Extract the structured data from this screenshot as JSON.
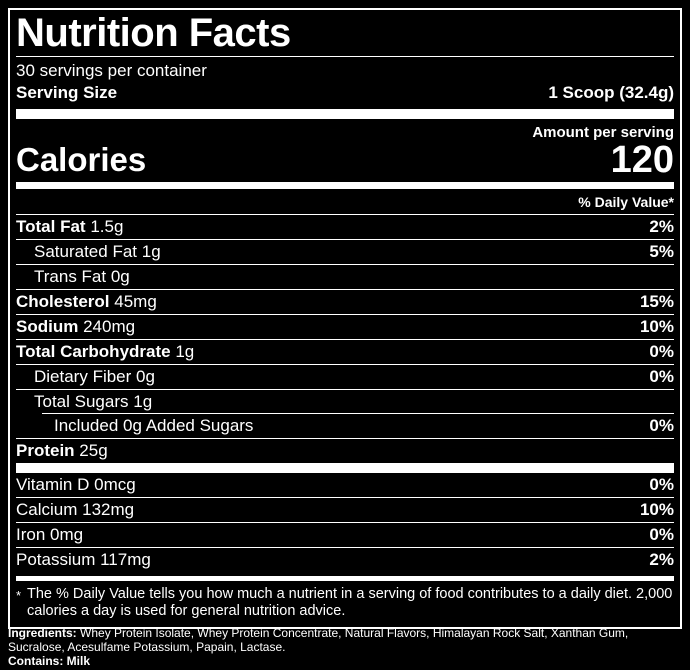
{
  "colors": {
    "background": "#000000",
    "foreground": "#ffffff"
  },
  "label": {
    "title": "Nutrition Facts",
    "servings_per_container": "30 servings per container",
    "serving_size_label": "Serving Size",
    "serving_size_value": "1 Scoop (32.4g)",
    "amount_per_serving": "Amount per serving",
    "calories_label": "Calories",
    "calories_value": "120",
    "daily_value_header": "% Daily Value*",
    "rows": [
      {
        "name": "Total Fat",
        "amount": "1.5g",
        "dv": "2%"
      },
      {
        "name": "Saturated Fat",
        "amount": "1g",
        "dv": "5%"
      },
      {
        "name": "Trans Fat",
        "amount": "0g",
        "dv": ""
      },
      {
        "name": "Cholesterol",
        "amount": "45mg",
        "dv": "15%"
      },
      {
        "name": "Sodium",
        "amount": "240mg",
        "dv": "10%"
      },
      {
        "name": "Total Carbohydrate",
        "amount": "1g",
        "dv": "0%"
      },
      {
        "name": "Dietary Fiber",
        "amount": "0g",
        "dv": "0%"
      },
      {
        "name": "Total Sugars",
        "amount": "1g",
        "dv": ""
      },
      {
        "name": "Included 0g Added Sugars",
        "amount": "",
        "dv": "0%"
      },
      {
        "name": "Protein",
        "amount": "25g",
        "dv": ""
      }
    ],
    "vitamins": [
      {
        "name": "Vitamin D",
        "amount": "0mcg",
        "dv": "0%"
      },
      {
        "name": "Calcium",
        "amount": "132mg",
        "dv": "10%"
      },
      {
        "name": "Iron",
        "amount": "0mg",
        "dv": "0%"
      },
      {
        "name": "Potassium",
        "amount": "117mg",
        "dv": "2%"
      }
    ],
    "footnote_marker": "*",
    "footnote": "The % Daily Value tells you how much a nutrient in a serving of food contributes to a daily diet. 2,000 calories a day is used for general nutrition advice."
  },
  "ingredients_label": "Ingredients:",
  "ingredients_text": "Whey Protein Isolate, Whey Protein Concentrate, Natural Flavors, Himalayan Rock Salt, Xanthan Gum, Sucralose, Acesulfame Potassium, Papain, Lactase.",
  "contains_label": "Contains:",
  "contains_text": "Milk"
}
